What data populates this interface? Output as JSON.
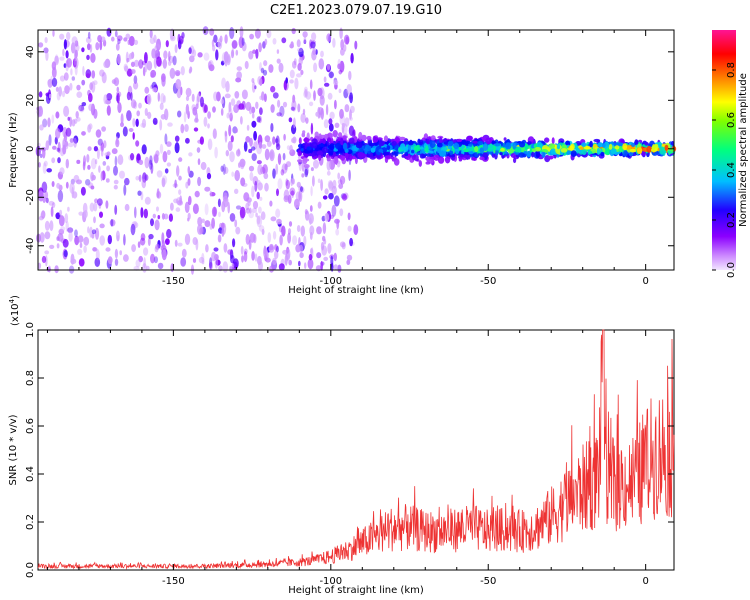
{
  "title": "C2E1.2023.079.07.19.G10",
  "chart_data": [
    {
      "type": "heatmap",
      "xlabel": "Height of straight line (km)",
      "ylabel": "Frequency (Hz)",
      "xlim": [
        -193,
        9
      ],
      "ylim": [
        -50,
        49
      ],
      "xticks": [
        -150,
        -100,
        -50,
        0
      ],
      "yticks": [
        -40,
        -20,
        0,
        20,
        40
      ],
      "colorbar": {
        "label": "Normalized spectral amplitude",
        "range": [
          0.0,
          0.96
        ],
        "ticks": [
          0.0,
          0.2,
          0.4,
          0.6,
          0.8
        ],
        "colormap": [
          "#e8d5ff",
          "#8b00ff",
          "#0000ff",
          "#00bfff",
          "#00ff7f",
          "#ffff00",
          "#ff8000",
          "#ff0000",
          "#ff1493"
        ]
      },
      "features": [
        {
          "description": "scattered noise",
          "x_range": [
            -193,
            -100
          ],
          "freq_range": [
            -50,
            49
          ],
          "amplitude": 0.1
        },
        {
          "description": "signal band",
          "x_range": [
            -110,
            9
          ],
          "freq_center": 0,
          "freq_halfwidth_start": 8,
          "freq_halfwidth_end": 3,
          "amplitude_start": 0.3,
          "amplitude_end": 0.96
        }
      ]
    },
    {
      "type": "line",
      "xlabel": "Height of straight line (km)",
      "ylabel": "SNR (10 * v/v)",
      "yscale_label": "(x10^4)",
      "xlim": [
        -193,
        9
      ],
      "ylim": [
        0.0,
        1.0
      ],
      "xticks": [
        -150,
        -100,
        -50,
        0
      ],
      "yticks": [
        0.0,
        0.2,
        0.4,
        0.6,
        0.8,
        1.0
      ],
      "color": "#ee3333",
      "series": [
        {
          "x": [
            -193,
            -180,
            -170,
            -160,
            -150,
            -140,
            -130,
            -120,
            -110,
            -105,
            -100,
            -95,
            -90,
            -85,
            -80,
            -75,
            -70,
            -65,
            -60,
            -55,
            -50,
            -45,
            -40,
            -35,
            -30,
            -25,
            -20,
            -17,
            -15,
            -13.5,
            -12,
            -10,
            -8,
            -5,
            -2,
            0,
            3,
            6,
            9
          ],
          "y": [
            0.02,
            0.02,
            0.02,
            0.02,
            0.02,
            0.02,
            0.025,
            0.03,
            0.04,
            0.05,
            0.07,
            0.1,
            0.14,
            0.18,
            0.22,
            0.22,
            0.2,
            0.2,
            0.21,
            0.22,
            0.2,
            0.21,
            0.2,
            0.22,
            0.28,
            0.35,
            0.42,
            0.45,
            0.5,
            1.0,
            0.4,
            0.45,
            0.45,
            0.45,
            0.5,
            0.55,
            0.6,
            0.62,
            0.58
          ]
        }
      ],
      "peak": {
        "x": -13.5,
        "y": 1.0
      }
    }
  ]
}
